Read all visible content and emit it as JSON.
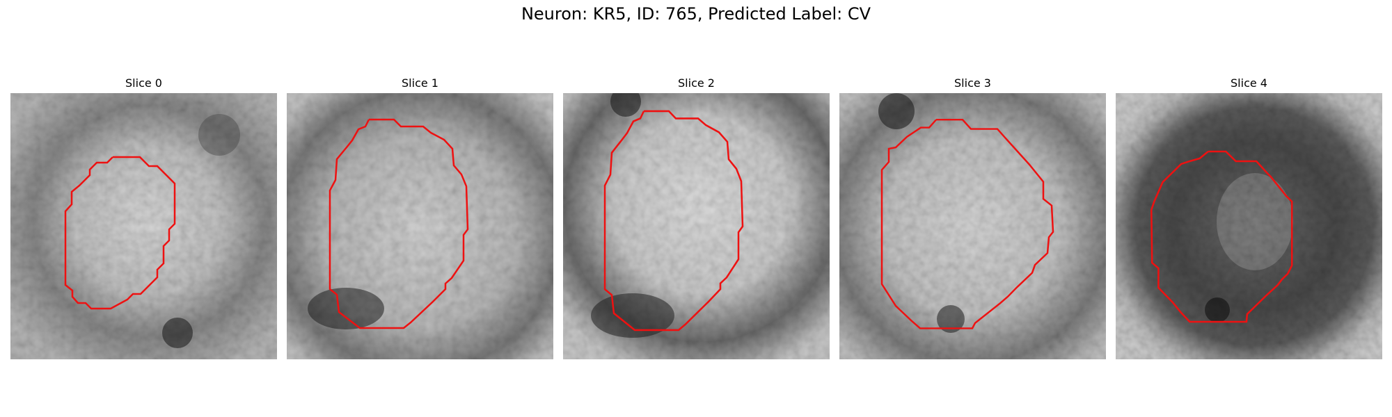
{
  "figure": {
    "title": "Neuron: KR5, ID: 765, Predicted Label: CV"
  },
  "panels": [
    {
      "label": "Slice 0"
    },
    {
      "label": "Slice 1"
    },
    {
      "label": "Slice 2"
    },
    {
      "label": "Slice 3"
    },
    {
      "label": "Slice 4"
    }
  ],
  "colors": {
    "contour": "#ee1111"
  }
}
